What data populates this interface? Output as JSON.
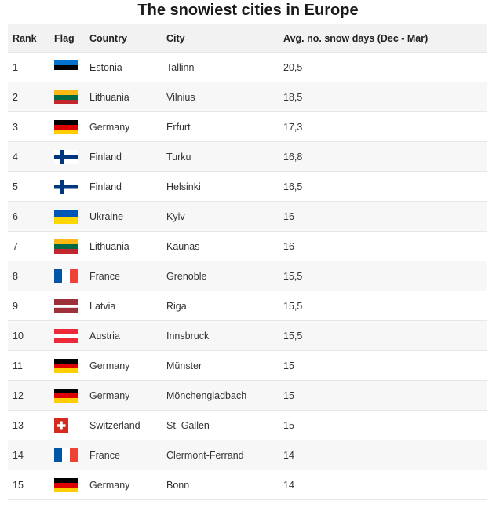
{
  "chart_data": {
    "type": "table",
    "title": "The snowiest cities in Europe",
    "columns": [
      "Rank",
      "Flag",
      "Country",
      "City",
      "Avg. no. snow days (Dec - Mar)"
    ],
    "rows": [
      {
        "rank": "1",
        "flag": "estonia-flag-icon",
        "country": "Estonia",
        "city": "Tallinn",
        "days": "20,5"
      },
      {
        "rank": "2",
        "flag": "lithuania-flag-icon",
        "country": "Lithuania",
        "city": "Vilnius",
        "days": "18,5"
      },
      {
        "rank": "3",
        "flag": "germany-flag-icon",
        "country": "Germany",
        "city": "Erfurt",
        "days": "17,3"
      },
      {
        "rank": "4",
        "flag": "finland-flag-icon",
        "country": "Finland",
        "city": "Turku",
        "days": "16,8"
      },
      {
        "rank": "5",
        "flag": "finland-flag-icon",
        "country": "Finland",
        "city": "Helsinki",
        "days": "16,5"
      },
      {
        "rank": "6",
        "flag": "ukraine-flag-icon",
        "country": "Ukraine",
        "city": "Kyiv",
        "days": "16"
      },
      {
        "rank": "7",
        "flag": "lithuania-flag-icon",
        "country": "Lithuania",
        "city": "Kaunas",
        "days": "16"
      },
      {
        "rank": "8",
        "flag": "france-flag-icon",
        "country": "France",
        "city": "Grenoble",
        "days": "15,5"
      },
      {
        "rank": "9",
        "flag": "latvia-flag-icon",
        "country": "Latvia",
        "city": "Riga",
        "days": "15,5"
      },
      {
        "rank": "10",
        "flag": "austria-flag-icon",
        "country": "Austria",
        "city": "Innsbruck",
        "days": "15,5"
      },
      {
        "rank": "11",
        "flag": "germany-flag-icon",
        "country": "Germany",
        "city": "Münster",
        "days": "15"
      },
      {
        "rank": "12",
        "flag": "germany-flag-icon",
        "country": "Germany",
        "city": "Mönchengladbach",
        "days": "15"
      },
      {
        "rank": "13",
        "flag": "switzerland-flag-icon",
        "country": "Switzerland",
        "city": "St. Gallen",
        "days": "15"
      },
      {
        "rank": "14",
        "flag": "france-flag-icon",
        "country": "France",
        "city": "Clermont-Ferrand",
        "days": "14"
      },
      {
        "rank": "15",
        "flag": "germany-flag-icon",
        "country": "Germany",
        "city": "Bonn",
        "days": "14"
      }
    ]
  },
  "flag_colors": {
    "estonia": [
      "#0072ce",
      "#000000",
      "#ffffff"
    ],
    "lithuania": [
      "#fdb913",
      "#006a44",
      "#c1272d"
    ],
    "germany": [
      "#000000",
      "#dd0000",
      "#ffce00"
    ],
    "finland": [
      "#ffffff",
      "#003580"
    ],
    "ukraine": [
      "#0057b7",
      "#ffd700"
    ],
    "france": [
      "#0055a4",
      "#ffffff",
      "#ef4135"
    ],
    "latvia": [
      "#9e3039",
      "#ffffff"
    ],
    "austria": [
      "#ed2939",
      "#ffffff"
    ],
    "switzerland": [
      "#d52b1e",
      "#ffffff"
    ]
  }
}
